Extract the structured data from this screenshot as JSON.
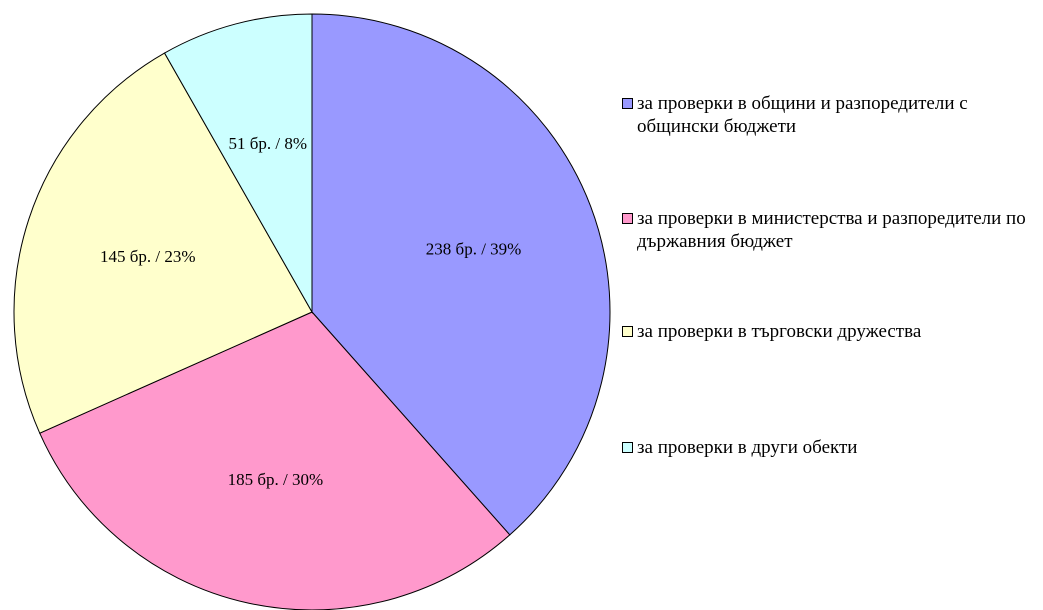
{
  "chart_data": {
    "type": "pie",
    "categories": [
      "за проверки в общини и разпоредители с общински бюджети",
      "за проверки в министерства и разпоредители по държавния бюджет",
      "за проверки в търговски дружества",
      "за проверки в други обекти"
    ],
    "values": [
      238,
      185,
      145,
      51
    ],
    "value_labels": [
      "238 бр. / 39%",
      "185 бр. / 30%",
      "145 бр. / 23%",
      "51 бр. / 8%"
    ],
    "colors": [
      "#9999ff",
      "#ff99cc",
      "#ffffcc",
      "#ccffff"
    ],
    "legend": "right"
  }
}
